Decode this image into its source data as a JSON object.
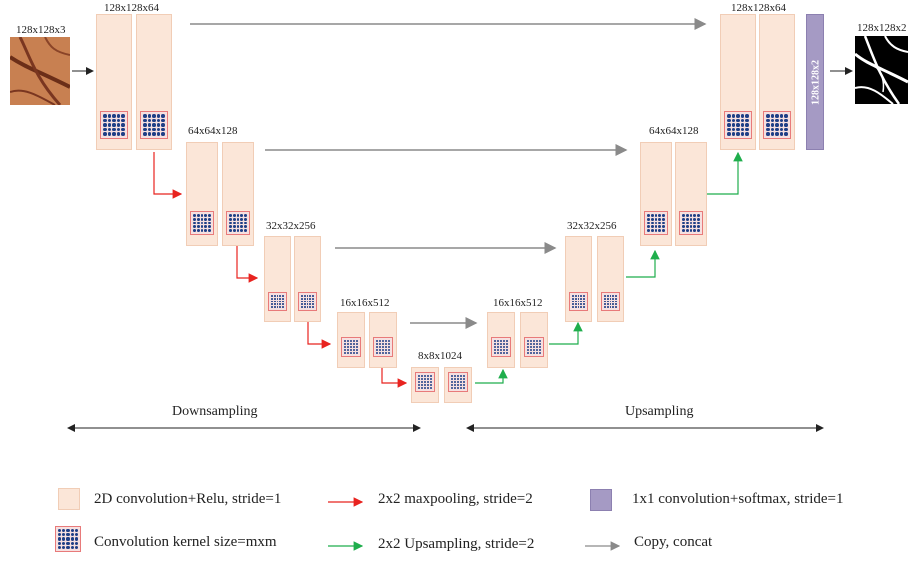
{
  "input": {
    "label": "128x128x3"
  },
  "output": {
    "label": "128x128x2",
    "vertical_label": "128x128x2"
  },
  "levels": {
    "enc1": "128x128x64",
    "enc2": "64x64x128",
    "enc3": "32x32x256",
    "enc4": "16x16x512",
    "bottleneck": "8x8x1024",
    "dec4": "16x16x512",
    "dec3": "32x32x256",
    "dec2": "64x64x128",
    "dec1": "128x128x64"
  },
  "sections": {
    "down": "Downsampling",
    "up": "Upsampling"
  },
  "legend": {
    "conv": "2D convolution+Relu, stride=1",
    "kernel": "Convolution kernel size=mxm",
    "maxpool": "2x2 maxpooling, stride=2",
    "upsample": "2x2 Upsampling, stride=2",
    "softmax": "1x1 convolution+softmax, stride=1",
    "copy": "Copy, concat"
  },
  "colors": {
    "block_fill": "#fbe6d8",
    "kernel_dot": "#1f3f86",
    "maxpool_arrow": "#e8231f",
    "upsample_arrow": "#1fae4c",
    "copy_arrow": "#8a8a8a",
    "softmax_fill": "#a59ac4"
  }
}
